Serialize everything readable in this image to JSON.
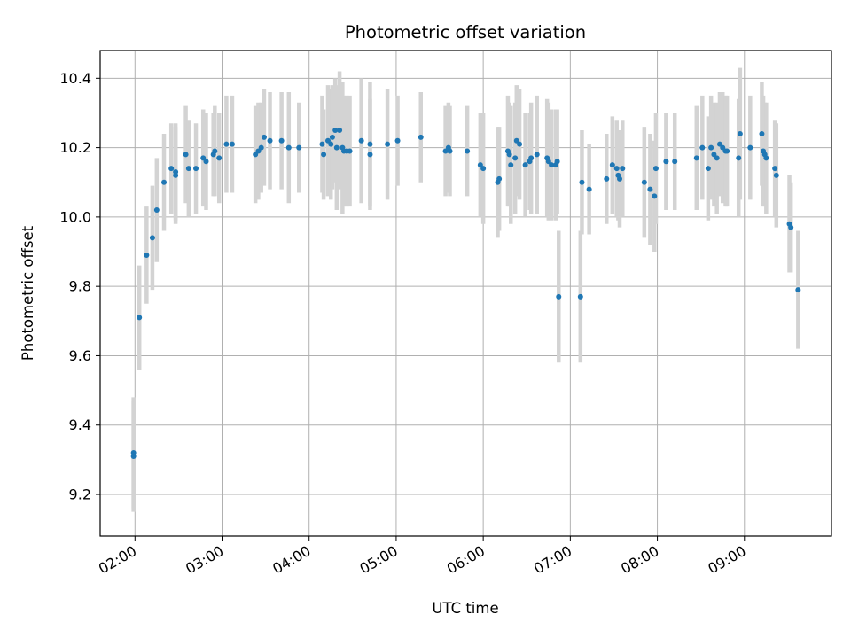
{
  "chart_data": {
    "type": "scatter",
    "title": "Photometric offset variation",
    "xlabel": "UTC time",
    "ylabel": "Photometric offset",
    "x_unit": "time",
    "xlim": [
      "01:36",
      "10:00"
    ],
    "ylim": [
      9.08,
      10.48
    ],
    "x_ticks": [
      "02:00",
      "03:00",
      "04:00",
      "05:00",
      "06:00",
      "07:00",
      "08:00",
      "09:00"
    ],
    "y_ticks": [
      9.2,
      9.4,
      9.6,
      9.8,
      10.0,
      10.2,
      10.4
    ],
    "y_tick_labels": [
      "9.2",
      "9.4",
      "9.6",
      "9.8",
      "10.0",
      "10.2",
      "10.4"
    ],
    "grid": true,
    "colors": {
      "points": "#1f77b4",
      "errorbars": "#d3d3d3",
      "grid": "#b0b0b0"
    },
    "series": [
      {
        "x": [
          "01:59",
          "01:59",
          "02:03",
          "02:08",
          "02:12",
          "02:15",
          "02:20",
          "02:25",
          "02:28",
          "02:28",
          "02:35",
          "02:37",
          "02:42",
          "02:47",
          "02:49",
          "02:54",
          "02:55",
          "02:58",
          "03:03",
          "03:07",
          "03:23",
          "03:25",
          "03:27",
          "03:29",
          "03:33",
          "03:41",
          "03:46",
          "03:53",
          "04:09",
          "04:10",
          "04:13",
          "04:15",
          "04:16",
          "04:18",
          "04:19",
          "04:21",
          "04:23",
          "04:24",
          "04:26",
          "04:28",
          "04:36",
          "04:42",
          "04:42",
          "04:54",
          "05:01",
          "05:17",
          "05:34",
          "05:36",
          "05:37",
          "05:49",
          "05:58",
          "06:00",
          "06:10",
          "06:11",
          "06:17",
          "06:18",
          "06:19",
          "06:22",
          "06:23",
          "06:25",
          "06:29",
          "06:32",
          "06:33",
          "06:37",
          "06:44",
          "06:45",
          "06:47",
          "06:50",
          "06:51",
          "06:52",
          "07:07",
          "07:08",
          "07:13",
          "07:25",
          "07:29",
          "07:32",
          "07:33",
          "07:34",
          "07:36",
          "07:51",
          "07:55",
          "07:58",
          "07:59",
          "08:06",
          "08:12",
          "08:27",
          "08:31",
          "08:35",
          "08:37",
          "08:39",
          "08:41",
          "08:43",
          "08:45",
          "08:47",
          "08:48",
          "08:56",
          "08:57",
          "09:04",
          "09:12",
          "09:13",
          "09:14",
          "09:15",
          "09:21",
          "09:22",
          "09:31",
          "09:32",
          "09:37"
        ],
        "y": [
          9.31,
          9.32,
          9.71,
          9.89,
          9.94,
          10.02,
          10.1,
          10.14,
          10.12,
          10.13,
          10.18,
          10.14,
          10.14,
          10.17,
          10.16,
          10.18,
          10.19,
          10.17,
          10.21,
          10.21,
          10.18,
          10.19,
          10.2,
          10.23,
          10.22,
          10.22,
          10.2,
          10.2,
          10.21,
          10.18,
          10.22,
          10.21,
          10.23,
          10.25,
          10.2,
          10.25,
          10.2,
          10.19,
          10.19,
          10.19,
          10.22,
          10.21,
          10.18,
          10.21,
          10.22,
          10.23,
          10.19,
          10.2,
          10.19,
          10.19,
          10.15,
          10.14,
          10.1,
          10.11,
          10.19,
          10.18,
          10.15,
          10.17,
          10.22,
          10.21,
          10.15,
          10.16,
          10.17,
          10.18,
          10.17,
          10.16,
          10.15,
          10.15,
          10.16,
          9.77,
          9.77,
          10.1,
          10.08,
          10.11,
          10.15,
          10.14,
          10.12,
          10.11,
          10.14,
          10.1,
          10.08,
          10.06,
          10.14,
          10.16,
          10.16,
          10.17,
          10.2,
          10.14,
          10.2,
          10.18,
          10.17,
          10.21,
          10.2,
          10.19,
          10.19,
          10.17,
          10.24,
          10.2,
          10.24,
          10.19,
          10.18,
          10.17,
          10.14,
          10.12,
          9.98,
          9.97,
          9.79
        ],
        "yerr": [
          0.16,
          0.16,
          0.15,
          0.14,
          0.15,
          0.15,
          0.14,
          0.13,
          0.14,
          0.14,
          0.14,
          0.14,
          0.13,
          0.14,
          0.14,
          0.12,
          0.13,
          0.13,
          0.14,
          0.14,
          0.14,
          0.14,
          0.13,
          0.14,
          0.14,
          0.14,
          0.16,
          0.13,
          0.14,
          0.13,
          0.16,
          0.16,
          0.15,
          0.15,
          0.18,
          0.17,
          0.19,
          0.16,
          0.16,
          0.16,
          0.18,
          0.18,
          0.16,
          0.16,
          0.13,
          0.13,
          0.13,
          0.13,
          0.13,
          0.13,
          0.15,
          0.16,
          0.16,
          0.15,
          0.16,
          0.15,
          0.17,
          0.16,
          0.16,
          0.16,
          0.15,
          0.14,
          0.16,
          0.17,
          0.17,
          0.17,
          0.16,
          0.16,
          0.15,
          0.19,
          0.19,
          0.15,
          0.13,
          0.13,
          0.14,
          0.14,
          0.13,
          0.14,
          0.14,
          0.16,
          0.16,
          0.16,
          0.16,
          0.14,
          0.14,
          0.15,
          0.15,
          0.15,
          0.15,
          0.15,
          0.16,
          0.15,
          0.16,
          0.16,
          0.16,
          0.17,
          0.19,
          0.15,
          0.15,
          0.16,
          0.15,
          0.16,
          0.14,
          0.15,
          0.14,
          0.13,
          0.17
        ]
      }
    ]
  }
}
